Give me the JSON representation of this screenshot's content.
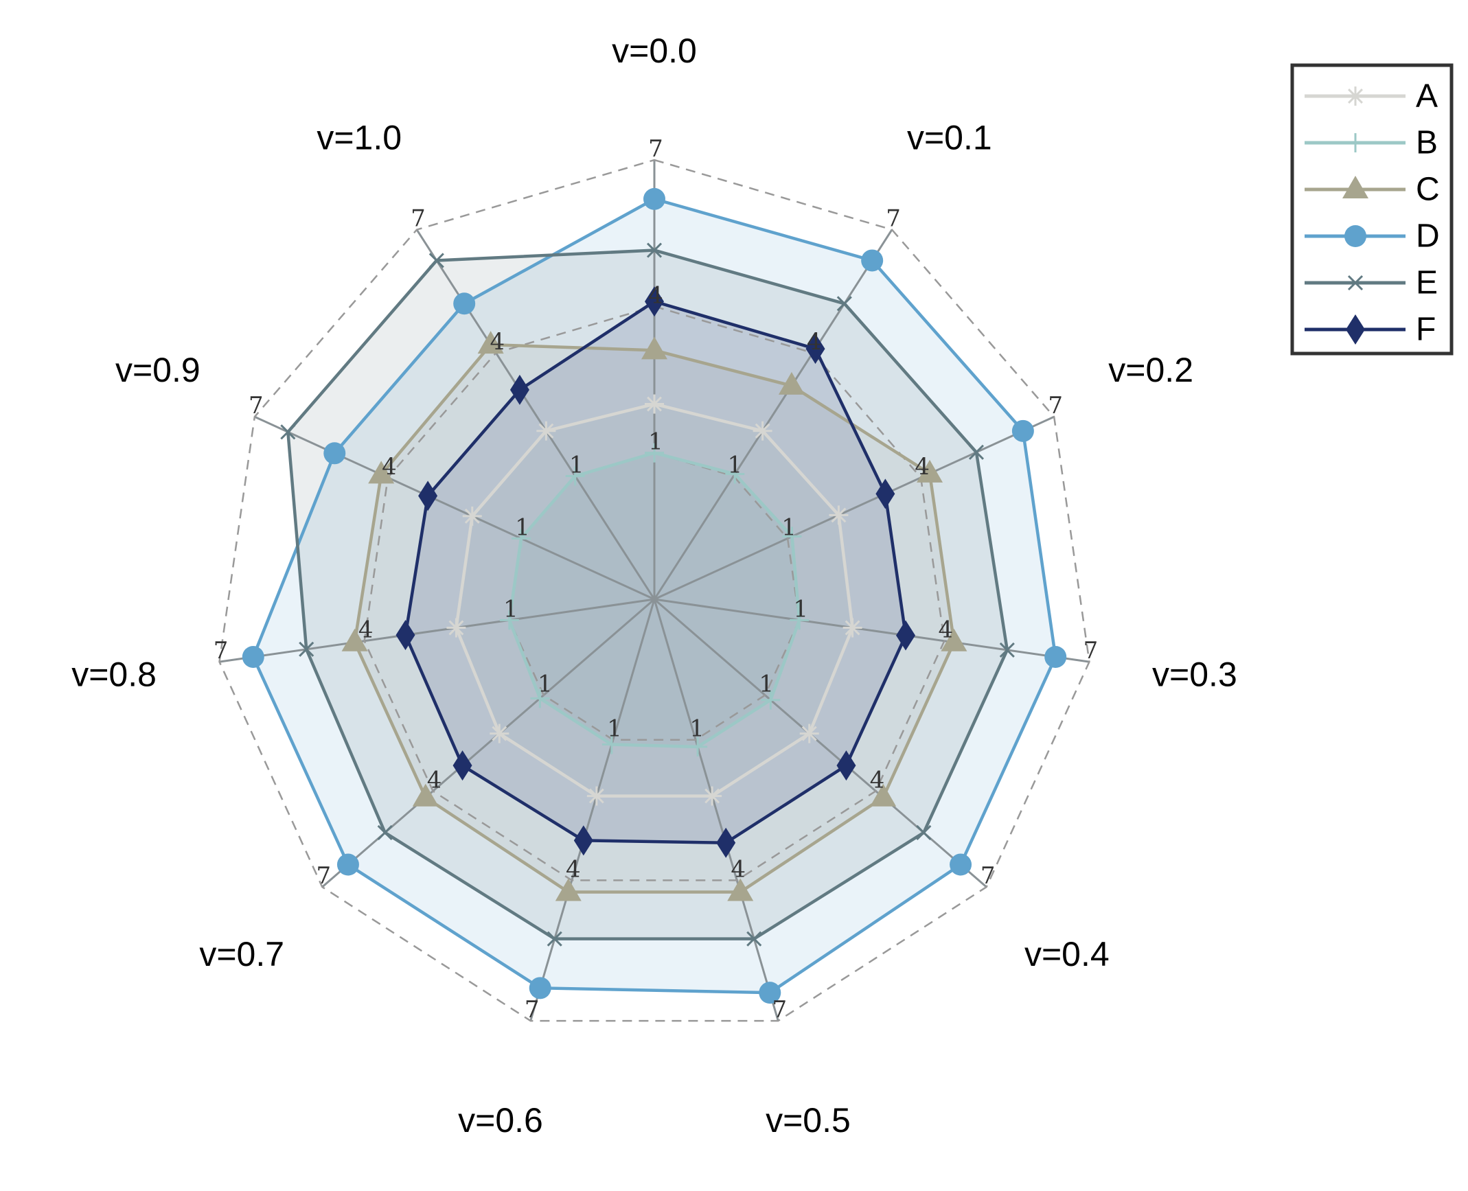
{
  "chart_data": {
    "type": "radar",
    "title": "",
    "axes": [
      "v=0.0",
      "v=0.1",
      "v=0.2",
      "v=0.3",
      "v=0.4",
      "v=0.5",
      "v=0.6",
      "v=0.7",
      "v=0.8",
      "v=0.9",
      "v=1.0"
    ],
    "radial_ticks": [
      1,
      4,
      7
    ],
    "radial_tick_labels": [
      "1",
      "4",
      "7"
    ],
    "rlim": [
      -2,
      7
    ],
    "grid": true,
    "legend_position": "top-right",
    "series": [
      {
        "name": "A",
        "color": "#d6d6d2",
        "marker": "asterisk",
        "values": [
          2.0,
          2.1,
          2.15,
          2.1,
          2.2,
          2.2,
          2.2,
          2.2,
          2.1,
          2.1,
          2.1
        ]
      },
      {
        "name": "B",
        "color": "#9cc8c6",
        "marker": "plus",
        "values": [
          1.0,
          1.05,
          1.1,
          1.0,
          1.15,
          1.15,
          1.1,
          1.1,
          1.0,
          1.0,
          1.0
        ]
      },
      {
        "name": "C",
        "color": "#a7a58e",
        "marker": "triangle",
        "values": [
          3.1,
          3.2,
          4.2,
          4.2,
          4.2,
          4.25,
          4.25,
          4.2,
          4.2,
          4.15,
          4.2
        ]
      },
      {
        "name": "D",
        "color": "#5fa2cd",
        "marker": "circle",
        "values": [
          6.2,
          6.25,
          6.3,
          6.3,
          6.3,
          6.4,
          6.3,
          6.3,
          6.3,
          5.2,
          5.2
        ]
      },
      {
        "name": "E",
        "color": "#617a82",
        "marker": "x",
        "values": [
          5.15,
          5.2,
          5.25,
          5.3,
          5.3,
          5.25,
          5.25,
          5.3,
          5.2,
          6.25,
          6.25
        ]
      },
      {
        "name": "F",
        "color": "#1f2f69",
        "marker": "diamond",
        "values": [
          4.1,
          4.1,
          3.2,
          3.2,
          3.2,
          3.2,
          3.15,
          3.2,
          3.15,
          3.1,
          3.1
        ]
      }
    ]
  }
}
